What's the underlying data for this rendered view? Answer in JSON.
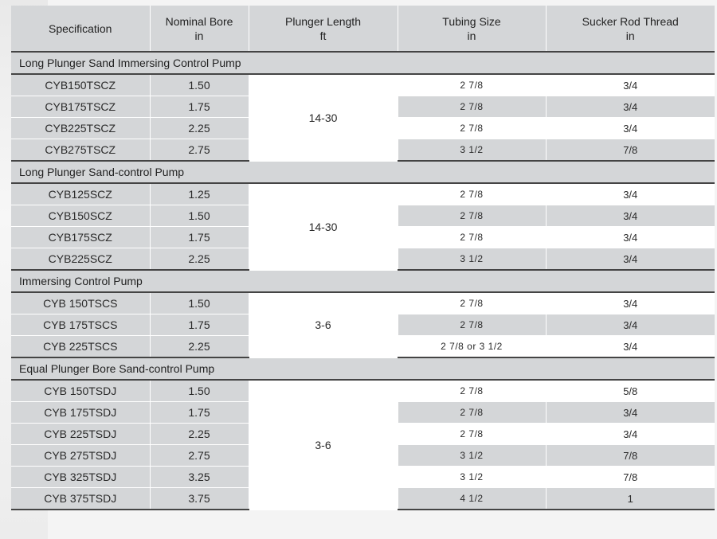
{
  "header": {
    "specification": "Specification",
    "nominal_bore": "Nominal  Bore",
    "nominal_bore_unit": "in",
    "plunger_length": "Plunger Length",
    "plunger_length_unit": "ft",
    "tubing_size": "Tubing Size",
    "tubing_size_unit": "in",
    "sucker_rod_thread": "Sucker Rod Thread",
    "sucker_rod_thread_unit": "in"
  },
  "groups": [
    {
      "title": "Long Plunger Sand Immersing Control Pump",
      "plunger_length": "14-30",
      "rows": [
        {
          "spec": "CYB150TSCZ",
          "bore": "1.50",
          "tubing": "2 7/8",
          "thread": "3/4"
        },
        {
          "spec": "CYB175TSCZ",
          "bore": "1.75",
          "tubing": "2 7/8",
          "thread": "3/4"
        },
        {
          "spec": "CYB225TSCZ",
          "bore": "2.25",
          "tubing": "2 7/8",
          "thread": "3/4"
        },
        {
          "spec": "CYB275TSCZ",
          "bore": "2.75",
          "tubing": "3  1/2",
          "thread": "7/8"
        }
      ]
    },
    {
      "title": "Long Plunger Sand-control Pump",
      "plunger_length": "14-30",
      "rows": [
        {
          "spec": "CYB125SCZ",
          "bore": "1.25",
          "tubing": "2 7/8",
          "thread": "3/4"
        },
        {
          "spec": "CYB150SCZ",
          "bore": "1.50",
          "tubing": "2 7/8",
          "thread": "3/4"
        },
        {
          "spec": "CYB175SCZ",
          "bore": "1.75",
          "tubing": "2 7/8",
          "thread": "3/4"
        },
        {
          "spec": "CYB225SCZ",
          "bore": "2.25",
          "tubing": "3  1/2",
          "thread": "3/4"
        }
      ]
    },
    {
      "title": "Immersing Control Pump",
      "plunger_length": "3-6",
      "rows": [
        {
          "spec": "CYB 150TSCS",
          "bore": "1.50",
          "tubing": "2 7/8",
          "thread": "3/4"
        },
        {
          "spec": "CYB 175TSCS",
          "bore": "1.75",
          "tubing": "2 7/8",
          "thread": "3/4"
        },
        {
          "spec": "CYB 225TSCS",
          "bore": "2.25",
          "tubing": "2 7/8  or  3  1/2",
          "thread": "3/4"
        }
      ]
    },
    {
      "title": "Equal Plunger Bore Sand-control Pump",
      "plunger_length": "3-6",
      "rows": [
        {
          "spec": "CYB 150TSDJ",
          "bore": "1.50",
          "tubing": "2 7/8",
          "thread": "5/8"
        },
        {
          "spec": "CYB 175TSDJ",
          "bore": "1.75",
          "tubing": "2 7/8",
          "thread": "3/4"
        },
        {
          "spec": "CYB 225TSDJ",
          "bore": "2.25",
          "tubing": "2 7/8",
          "thread": "3/4"
        },
        {
          "spec": "CYB 275TSDJ",
          "bore": "2.75",
          "tubing": "3  1/2",
          "thread": "7/8"
        },
        {
          "spec": "CYB 325TSDJ",
          "bore": "3.25",
          "tubing": "3  1/2",
          "thread": "7/8"
        },
        {
          "spec": "CYB 375TSDJ",
          "bore": "3.75",
          "tubing": "4  1/2",
          "thread": "1"
        }
      ]
    }
  ]
}
